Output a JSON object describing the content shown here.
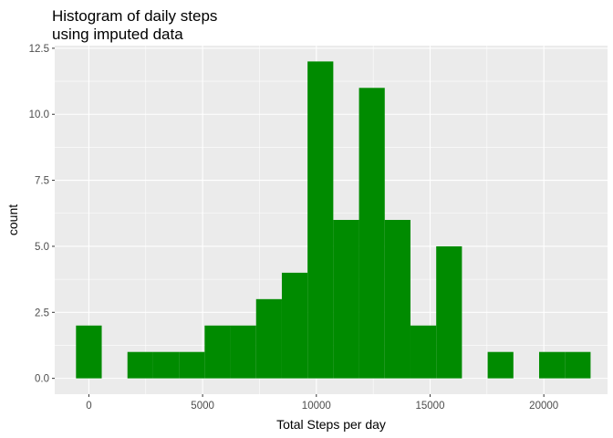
{
  "chart_data": {
    "type": "bar",
    "title": "Histogram of daily steps\nusing imputed data",
    "title_lines": [
      "Histogram of daily steps",
      "using imputed data"
    ],
    "xlabel": "Total Steps per day",
    "ylabel": "count",
    "xlim": [
      -1500,
      22800
    ],
    "ylim": [
      -0.6,
      12.6
    ],
    "xticks": [
      0,
      5000,
      10000,
      15000,
      20000
    ],
    "xtick_labels": [
      "0",
      "5000",
      "10000",
      "15000",
      "20000"
    ],
    "yticks": [
      0,
      2.5,
      5,
      7.5,
      10,
      12.5
    ],
    "ytick_labels": [
      "0.0",
      "2.5",
      "5.0",
      "7.5",
      "10.0",
      "12.5"
    ],
    "bin_width": 1131,
    "bins": [
      {
        "x0": -565,
        "x1": 566,
        "count": 2
      },
      {
        "x0": 566,
        "x1": 1697,
        "count": 0
      },
      {
        "x0": 1697,
        "x1": 2828,
        "count": 1
      },
      {
        "x0": 2828,
        "x1": 3959,
        "count": 1
      },
      {
        "x0": 3959,
        "x1": 5090,
        "count": 1
      },
      {
        "x0": 5090,
        "x1": 6221,
        "count": 2
      },
      {
        "x0": 6221,
        "x1": 7352,
        "count": 2
      },
      {
        "x0": 7352,
        "x1": 8483,
        "count": 3
      },
      {
        "x0": 8483,
        "x1": 9614,
        "count": 4
      },
      {
        "x0": 9614,
        "x1": 10745,
        "count": 12
      },
      {
        "x0": 10745,
        "x1": 11876,
        "count": 6
      },
      {
        "x0": 11876,
        "x1": 13007,
        "count": 11
      },
      {
        "x0": 13007,
        "x1": 14138,
        "count": 6
      },
      {
        "x0": 14138,
        "x1": 15269,
        "count": 2
      },
      {
        "x0": 15269,
        "x1": 16400,
        "count": 5
      },
      {
        "x0": 16400,
        "x1": 17531,
        "count": 0
      },
      {
        "x0": 17531,
        "x1": 18662,
        "count": 1
      },
      {
        "x0": 18662,
        "x1": 19793,
        "count": 0
      },
      {
        "x0": 19793,
        "x1": 20924,
        "count": 1
      },
      {
        "x0": 20924,
        "x1": 22055,
        "count": 1
      }
    ],
    "grid": true
  },
  "colors": {
    "bar_fill": "#008B00",
    "panel_bg": "#EBEBEB",
    "grid_major": "#FFFFFF",
    "tick_mark": "#333333"
  }
}
